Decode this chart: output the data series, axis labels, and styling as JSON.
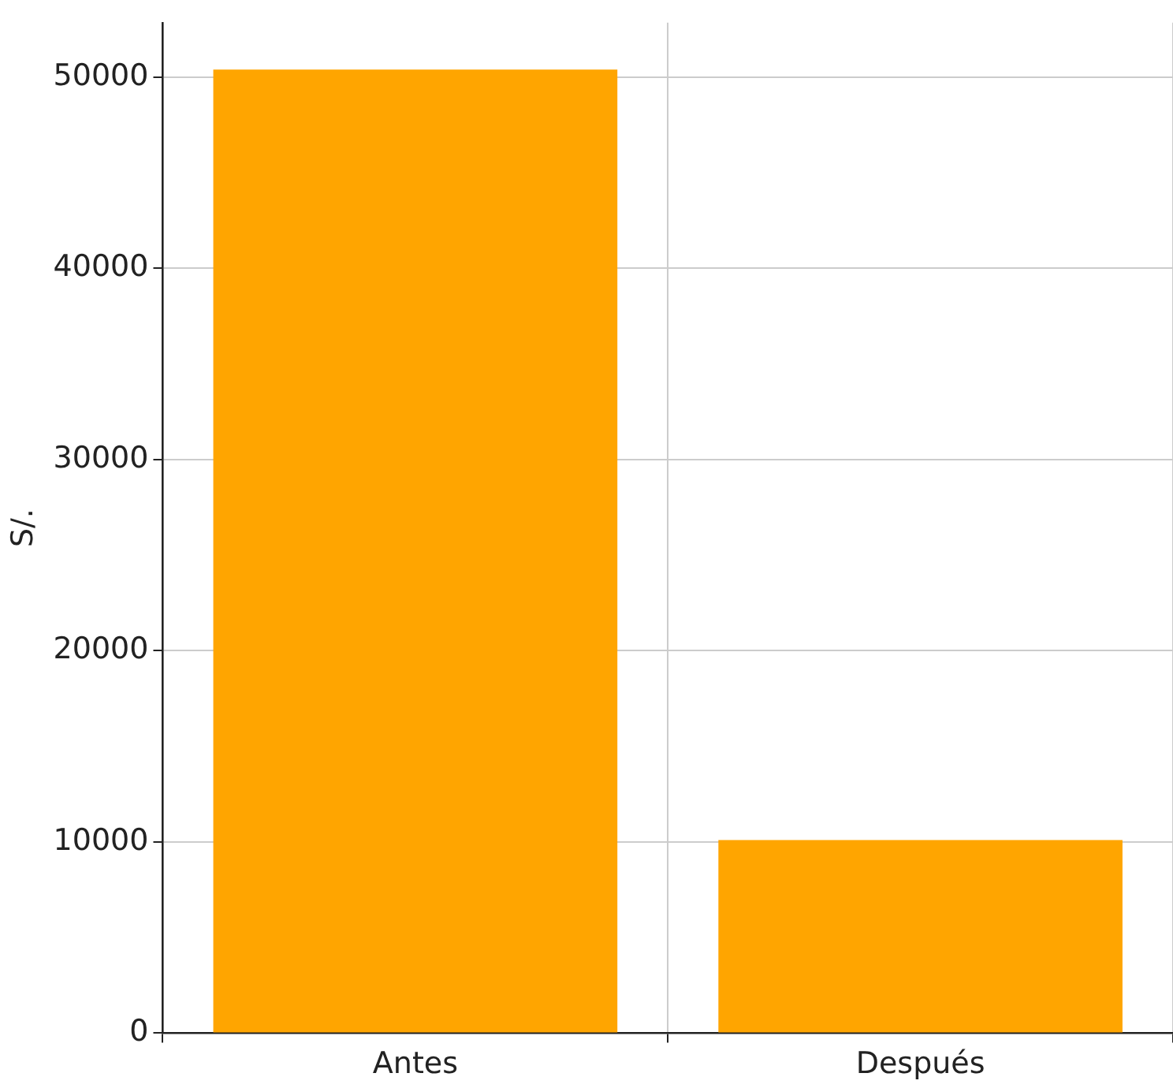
{
  "chart_data": {
    "type": "bar",
    "ylabel": "S/.",
    "categories": [
      "Antes",
      "Después"
    ],
    "series": [
      {
        "color": "#ffa500",
        "values": [
          50400,
          10100
        ]
      }
    ],
    "ylim": [
      0,
      52850
    ],
    "yticks": [
      0,
      10000,
      20000,
      30000,
      40000,
      50000
    ],
    "grid": true
  }
}
